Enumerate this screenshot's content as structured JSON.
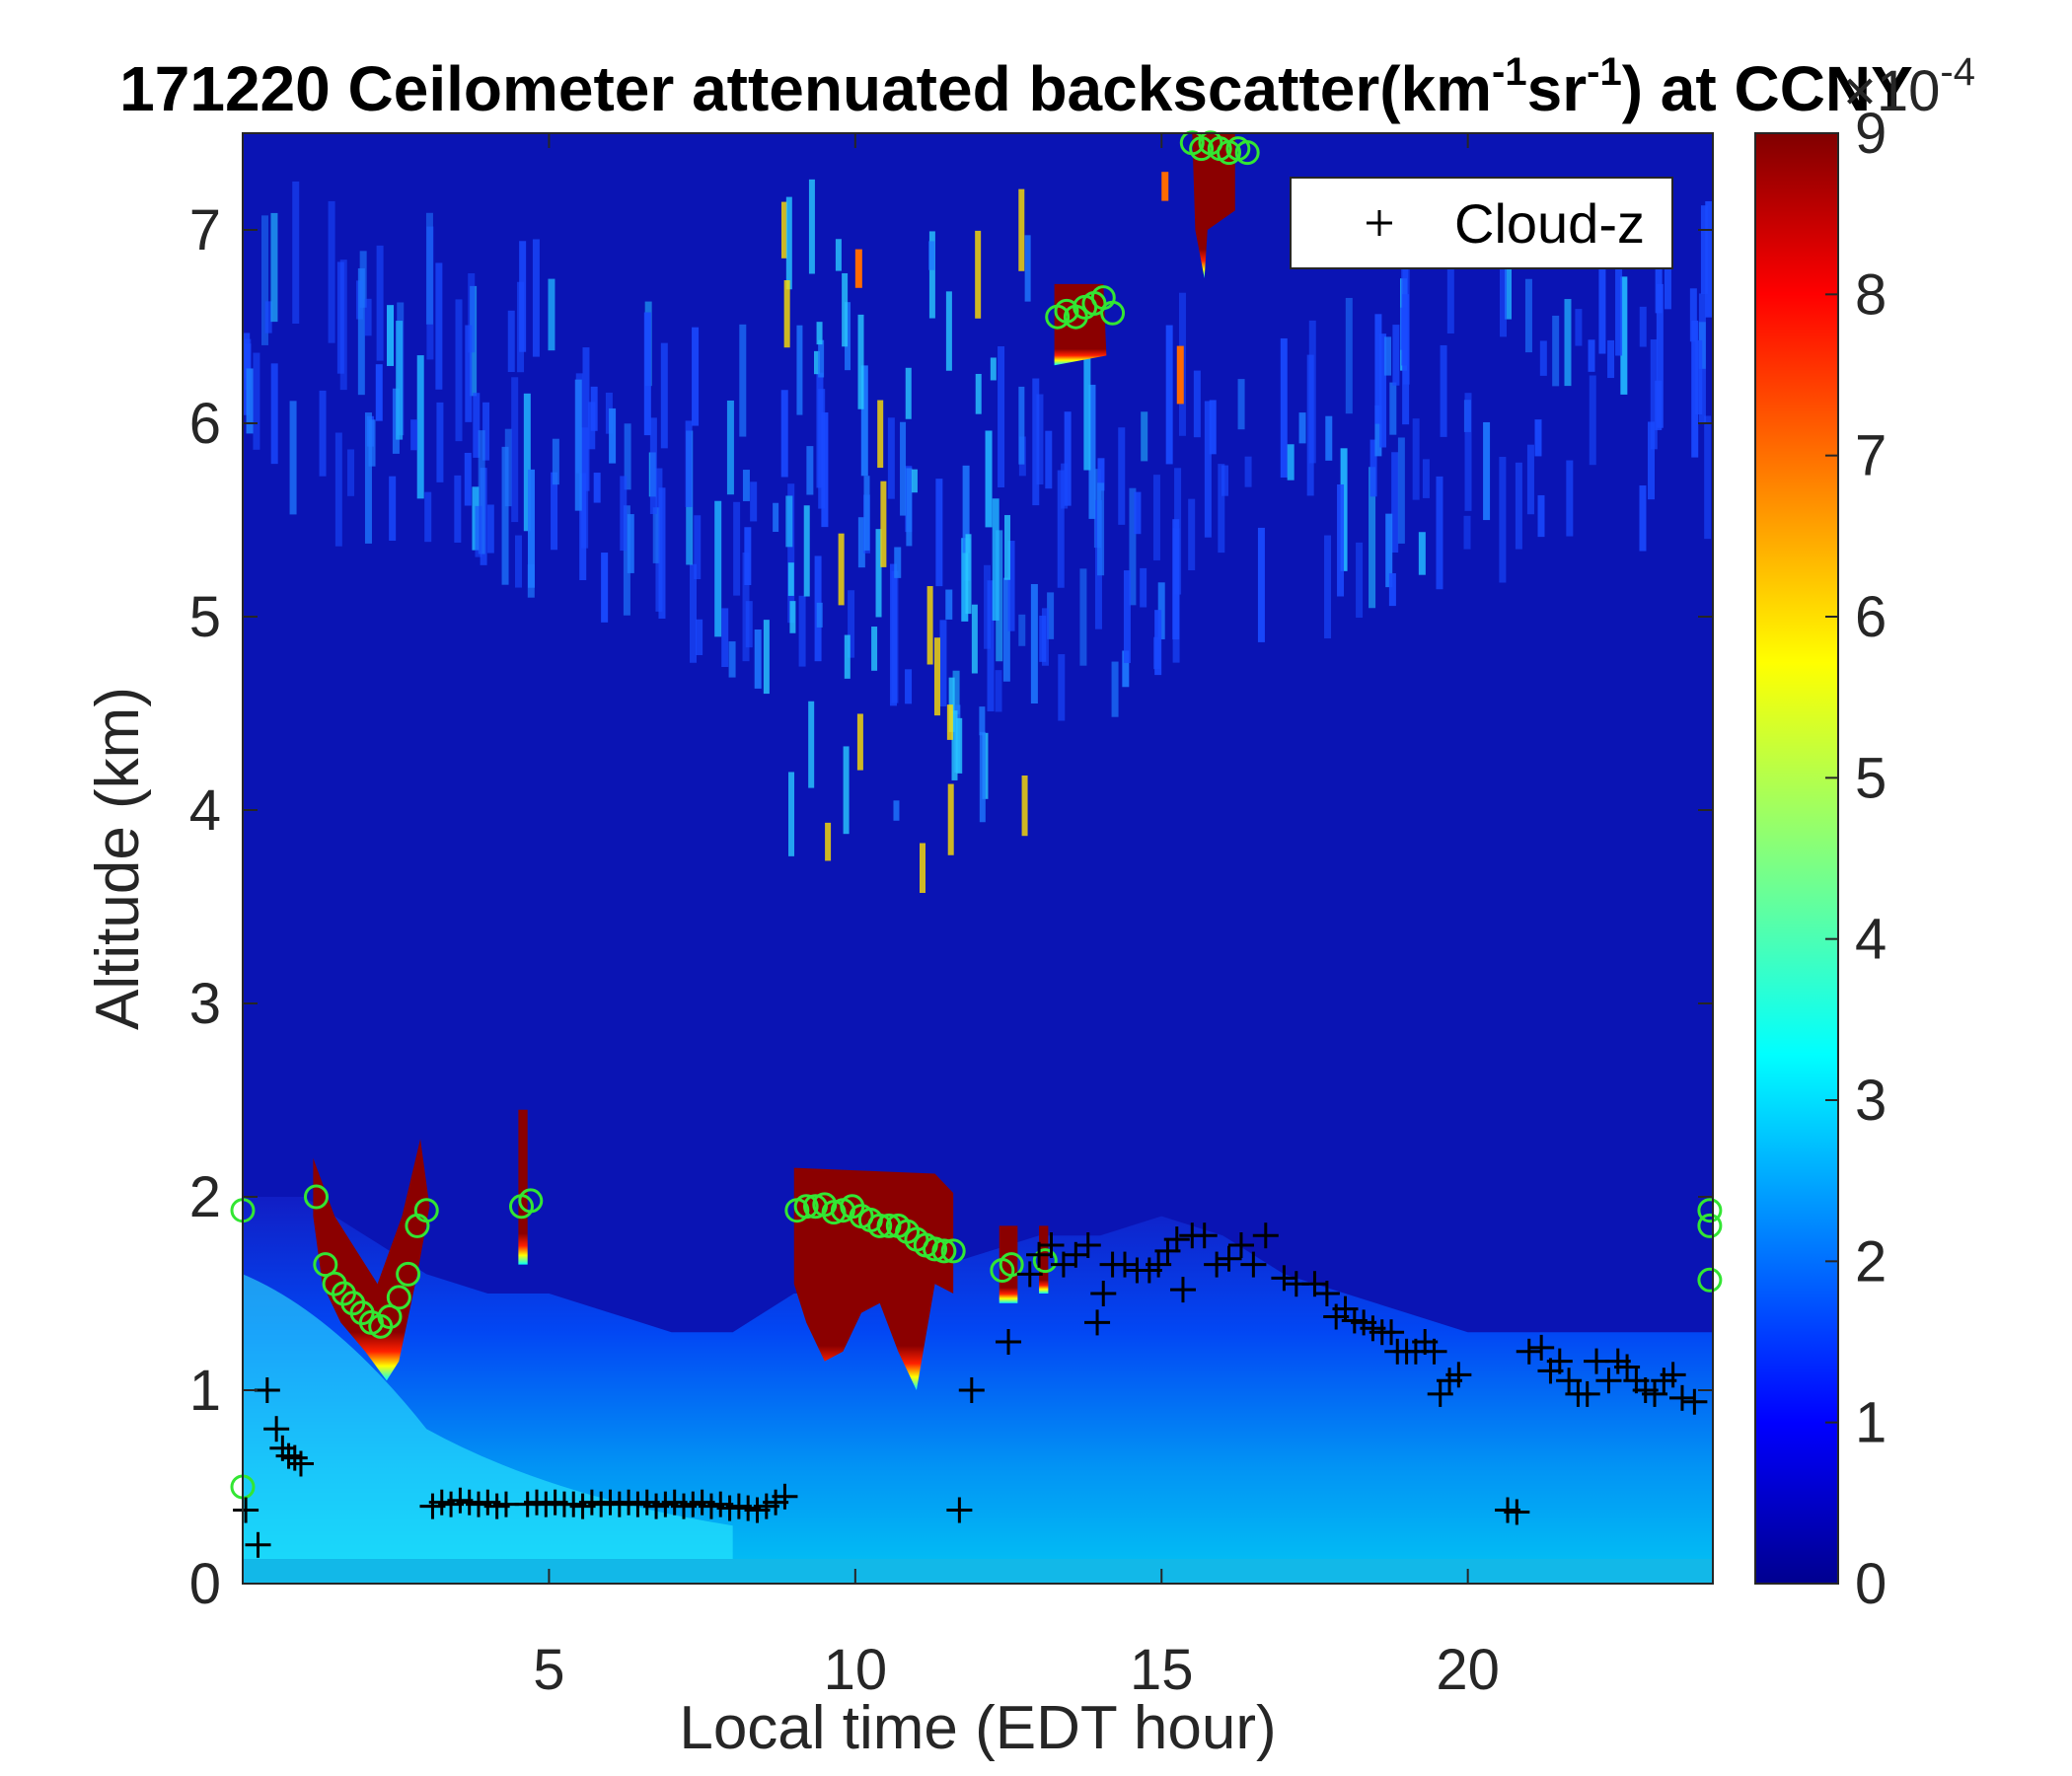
{
  "chart_data": {
    "type": "heatmap",
    "title_main": "171220 Ceilometer attenuated backscatter(km",
    "title_sup1": "-1",
    "title_mid": "sr",
    "title_sup2": "-1",
    "title_end": ") at CCNY",
    "xlabel": "Local time (EDT hour)",
    "ylabel": "Altitude (km)",
    "xlim": [
      0,
      24
    ],
    "ylim": [
      0,
      7.5
    ],
    "xticks": [
      "5",
      "10",
      "15",
      "20"
    ],
    "xtick_values": [
      5,
      10,
      15,
      20
    ],
    "yticks": [
      "0",
      "1",
      "2",
      "3",
      "4",
      "5",
      "6",
      "7"
    ],
    "ytick_values": [
      0,
      1,
      2,
      3,
      4,
      5,
      6,
      7
    ],
    "colorbar": {
      "colormap": "jet",
      "range": [
        0,
        9
      ],
      "ticks": [
        "0",
        "1",
        "2",
        "3",
        "4",
        "5",
        "6",
        "7",
        "8",
        "9"
      ],
      "tick_values": [
        0,
        1,
        2,
        3,
        4,
        5,
        6,
        7,
        8,
        9
      ],
      "exponent_label": "×10",
      "exponent_power": "-4"
    },
    "legend": {
      "entries": [
        {
          "marker": "+",
          "label": "Cloud-z"
        }
      ],
      "location": "top-right"
    },
    "cloud_z": [
      [
        0.05,
        0.38
      ],
      [
        0.25,
        0.2
      ],
      [
        0.4,
        1.0
      ],
      [
        0.55,
        0.8
      ],
      [
        0.65,
        0.7
      ],
      [
        0.75,
        0.66
      ],
      [
        0.85,
        0.65
      ],
      [
        0.95,
        0.62
      ],
      [
        3.1,
        0.4
      ],
      [
        3.25,
        0.42
      ],
      [
        3.4,
        0.41
      ],
      [
        3.55,
        0.43
      ],
      [
        3.7,
        0.42
      ],
      [
        3.85,
        0.41
      ],
      [
        4.0,
        0.42
      ],
      [
        4.15,
        0.4
      ],
      [
        4.3,
        0.41
      ],
      [
        4.65,
        0.41
      ],
      [
        4.8,
        0.42
      ],
      [
        4.95,
        0.41
      ],
      [
        5.1,
        0.42
      ],
      [
        5.25,
        0.41
      ],
      [
        5.4,
        0.41
      ],
      [
        5.55,
        0.4
      ],
      [
        5.7,
        0.42
      ],
      [
        5.85,
        0.41
      ],
      [
        6.0,
        0.42
      ],
      [
        6.15,
        0.41
      ],
      [
        6.3,
        0.42
      ],
      [
        6.45,
        0.41
      ],
      [
        6.6,
        0.42
      ],
      [
        6.75,
        0.4
      ],
      [
        6.9,
        0.41
      ],
      [
        7.05,
        0.42
      ],
      [
        7.2,
        0.4
      ],
      [
        7.35,
        0.41
      ],
      [
        7.5,
        0.42
      ],
      [
        7.65,
        0.4
      ],
      [
        7.8,
        0.41
      ],
      [
        7.95,
        0.39
      ],
      [
        8.1,
        0.4
      ],
      [
        8.25,
        0.39
      ],
      [
        8.4,
        0.38
      ],
      [
        8.55,
        0.4
      ],
      [
        8.7,
        0.42
      ],
      [
        8.85,
        0.45
      ],
      [
        11.7,
        0.38
      ],
      [
        11.9,
        1.0
      ],
      [
        12.5,
        1.25
      ],
      [
        12.85,
        1.6
      ],
      [
        13.0,
        1.7
      ],
      [
        13.2,
        1.75
      ],
      [
        13.4,
        1.65
      ],
      [
        13.6,
        1.7
      ],
      [
        13.8,
        1.75
      ],
      [
        13.95,
        1.35
      ],
      [
        14.05,
        1.5
      ],
      [
        14.2,
        1.65
      ],
      [
        14.4,
        1.65
      ],
      [
        14.6,
        1.62
      ],
      [
        14.8,
        1.62
      ],
      [
        14.95,
        1.65
      ],
      [
        15.1,
        1.72
      ],
      [
        15.25,
        1.78
      ],
      [
        15.35,
        1.52
      ],
      [
        15.5,
        1.8
      ],
      [
        15.7,
        1.8
      ],
      [
        15.9,
        1.65
      ],
      [
        16.1,
        1.68
      ],
      [
        16.3,
        1.75
      ],
      [
        16.5,
        1.65
      ],
      [
        16.7,
        1.8
      ],
      [
        17.0,
        1.58
      ],
      [
        17.2,
        1.55
      ],
      [
        17.5,
        1.55
      ],
      [
        17.7,
        1.5
      ],
      [
        17.85,
        1.38
      ],
      [
        18.0,
        1.42
      ],
      [
        18.15,
        1.36
      ],
      [
        18.3,
        1.35
      ],
      [
        18.45,
        1.32
      ],
      [
        18.6,
        1.3
      ],
      [
        18.75,
        1.3
      ],
      [
        18.85,
        1.2
      ],
      [
        19.0,
        1.2
      ],
      [
        19.15,
        1.2
      ],
      [
        19.3,
        1.25
      ],
      [
        19.45,
        1.2
      ],
      [
        19.55,
        0.98
      ],
      [
        19.7,
        1.05
      ],
      [
        19.85,
        1.08
      ],
      [
        20.65,
        0.38
      ],
      [
        20.8,
        0.37
      ],
      [
        21.0,
        1.2
      ],
      [
        21.2,
        1.22
      ],
      [
        21.35,
        1.1
      ],
      [
        21.5,
        1.15
      ],
      [
        21.65,
        1.05
      ],
      [
        21.8,
        0.98
      ],
      [
        21.95,
        0.98
      ],
      [
        22.1,
        1.15
      ],
      [
        22.3,
        1.05
      ],
      [
        22.45,
        1.15
      ],
      [
        22.6,
        1.12
      ],
      [
        22.75,
        1.05
      ],
      [
        22.9,
        1.0
      ],
      [
        23.05,
        0.98
      ],
      [
        23.2,
        1.05
      ],
      [
        23.35,
        1.08
      ],
      [
        23.5,
        0.96
      ],
      [
        23.7,
        0.94
      ]
    ],
    "green_circles": [
      [
        0.0,
        1.93
      ],
      [
        0.0,
        0.5
      ],
      [
        1.2,
        2.0
      ],
      [
        1.35,
        1.65
      ],
      [
        1.5,
        1.55
      ],
      [
        1.65,
        1.5
      ],
      [
        1.8,
        1.45
      ],
      [
        1.95,
        1.4
      ],
      [
        2.1,
        1.35
      ],
      [
        2.25,
        1.33
      ],
      [
        2.4,
        1.38
      ],
      [
        2.55,
        1.48
      ],
      [
        2.7,
        1.6
      ],
      [
        2.85,
        1.85
      ],
      [
        3.0,
        1.93
      ],
      [
        4.55,
        1.95
      ],
      [
        4.7,
        1.98
      ],
      [
        9.05,
        1.93
      ],
      [
        9.2,
        1.95
      ],
      [
        9.35,
        1.95
      ],
      [
        9.5,
        1.96
      ],
      [
        9.65,
        1.92
      ],
      [
        9.8,
        1.93
      ],
      [
        9.95,
        1.95
      ],
      [
        10.1,
        1.9
      ],
      [
        10.25,
        1.88
      ],
      [
        10.4,
        1.85
      ],
      [
        10.55,
        1.85
      ],
      [
        10.7,
        1.85
      ],
      [
        10.85,
        1.82
      ],
      [
        11.0,
        1.78
      ],
      [
        11.15,
        1.75
      ],
      [
        11.3,
        1.73
      ],
      [
        11.45,
        1.72
      ],
      [
        11.6,
        1.72
      ],
      [
        12.4,
        1.62
      ],
      [
        12.55,
        1.65
      ],
      [
        13.1,
        1.67
      ],
      [
        13.3,
        6.55
      ],
      [
        13.45,
        6.58
      ],
      [
        13.6,
        6.55
      ],
      [
        13.75,
        6.6
      ],
      [
        13.9,
        6.62
      ],
      [
        14.05,
        6.65
      ],
      [
        14.2,
        6.57
      ],
      [
        15.5,
        7.45
      ],
      [
        15.65,
        7.42
      ],
      [
        15.8,
        7.45
      ],
      [
        15.95,
        7.42
      ],
      [
        16.1,
        7.4
      ],
      [
        16.25,
        7.42
      ],
      [
        16.4,
        7.4
      ],
      [
        23.95,
        1.93
      ],
      [
        23.95,
        1.85
      ],
      [
        23.95,
        1.57
      ]
    ]
  }
}
